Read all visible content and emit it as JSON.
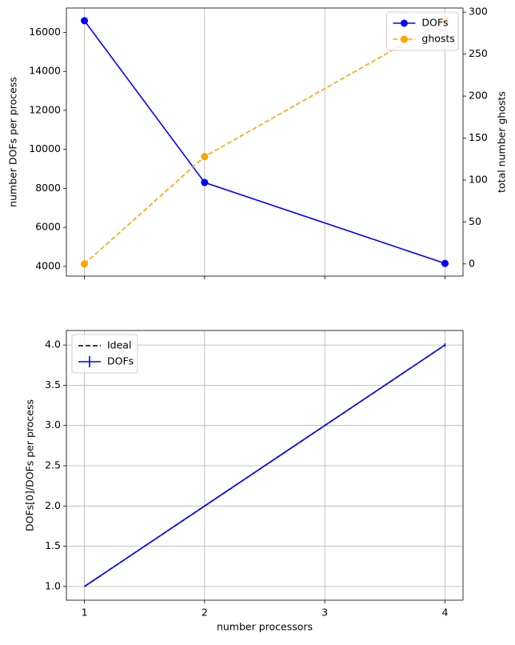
{
  "chart_data": [
    {
      "type": "line",
      "x": [
        1,
        2,
        4
      ],
      "xlim": [
        0.85,
        4.15
      ],
      "xticks": [
        1,
        2,
        3,
        4
      ],
      "xticklabels": false,
      "ylim": [
        3500,
        17250
      ],
      "yticks": [
        4000,
        6000,
        8000,
        10000,
        12000,
        14000,
        16000
      ],
      "y2lim": [
        -14.5,
        305
      ],
      "y2ticks": [
        0,
        50,
        100,
        150,
        200,
        250,
        300
      ],
      "ylabel": "number DOFs per process",
      "y2label": "total number ghosts",
      "grid": "x",
      "legend": "upper right",
      "series": [
        {
          "name": "DOFs",
          "color": "#0000ff",
          "linestyle": "solid",
          "marker": "o",
          "values": [
            16600,
            8300,
            4150
          ]
        },
        {
          "name": "ghosts",
          "color": "#ffa500",
          "linestyle": "dashed",
          "marker": "o",
          "axis": "y2",
          "values": [
            0,
            128,
            290
          ]
        }
      ]
    },
    {
      "type": "line",
      "x": [
        1,
        2,
        4
      ],
      "xlim": [
        0.85,
        4.15
      ],
      "xticks": [
        1,
        2,
        3,
        4
      ],
      "ylim": [
        0.83,
        4.18
      ],
      "yticks": [
        {
          "value": 1,
          "label": "1.0"
        },
        1.5,
        {
          "value": 2,
          "label": "2.0"
        },
        2.5,
        {
          "value": 3,
          "label": "3.0"
        },
        3.5,
        {
          "value": 4,
          "label": "4.0"
        }
      ],
      "xlabel": "number processors",
      "ylabel": "DOFs[0]/DOFs per process",
      "grid": "both",
      "legend": "upper left",
      "series": [
        {
          "name": "Ideal",
          "color": "#000000",
          "linestyle": "dashed",
          "marker": null,
          "values": [
            1,
            2,
            4
          ]
        },
        {
          "name": "DOFs",
          "color": "#0000ff",
          "linestyle": "solid",
          "marker": "errorbar",
          "values": [
            1,
            2,
            4
          ],
          "errors": [
            0,
            0,
            0.02
          ]
        }
      ]
    }
  ]
}
